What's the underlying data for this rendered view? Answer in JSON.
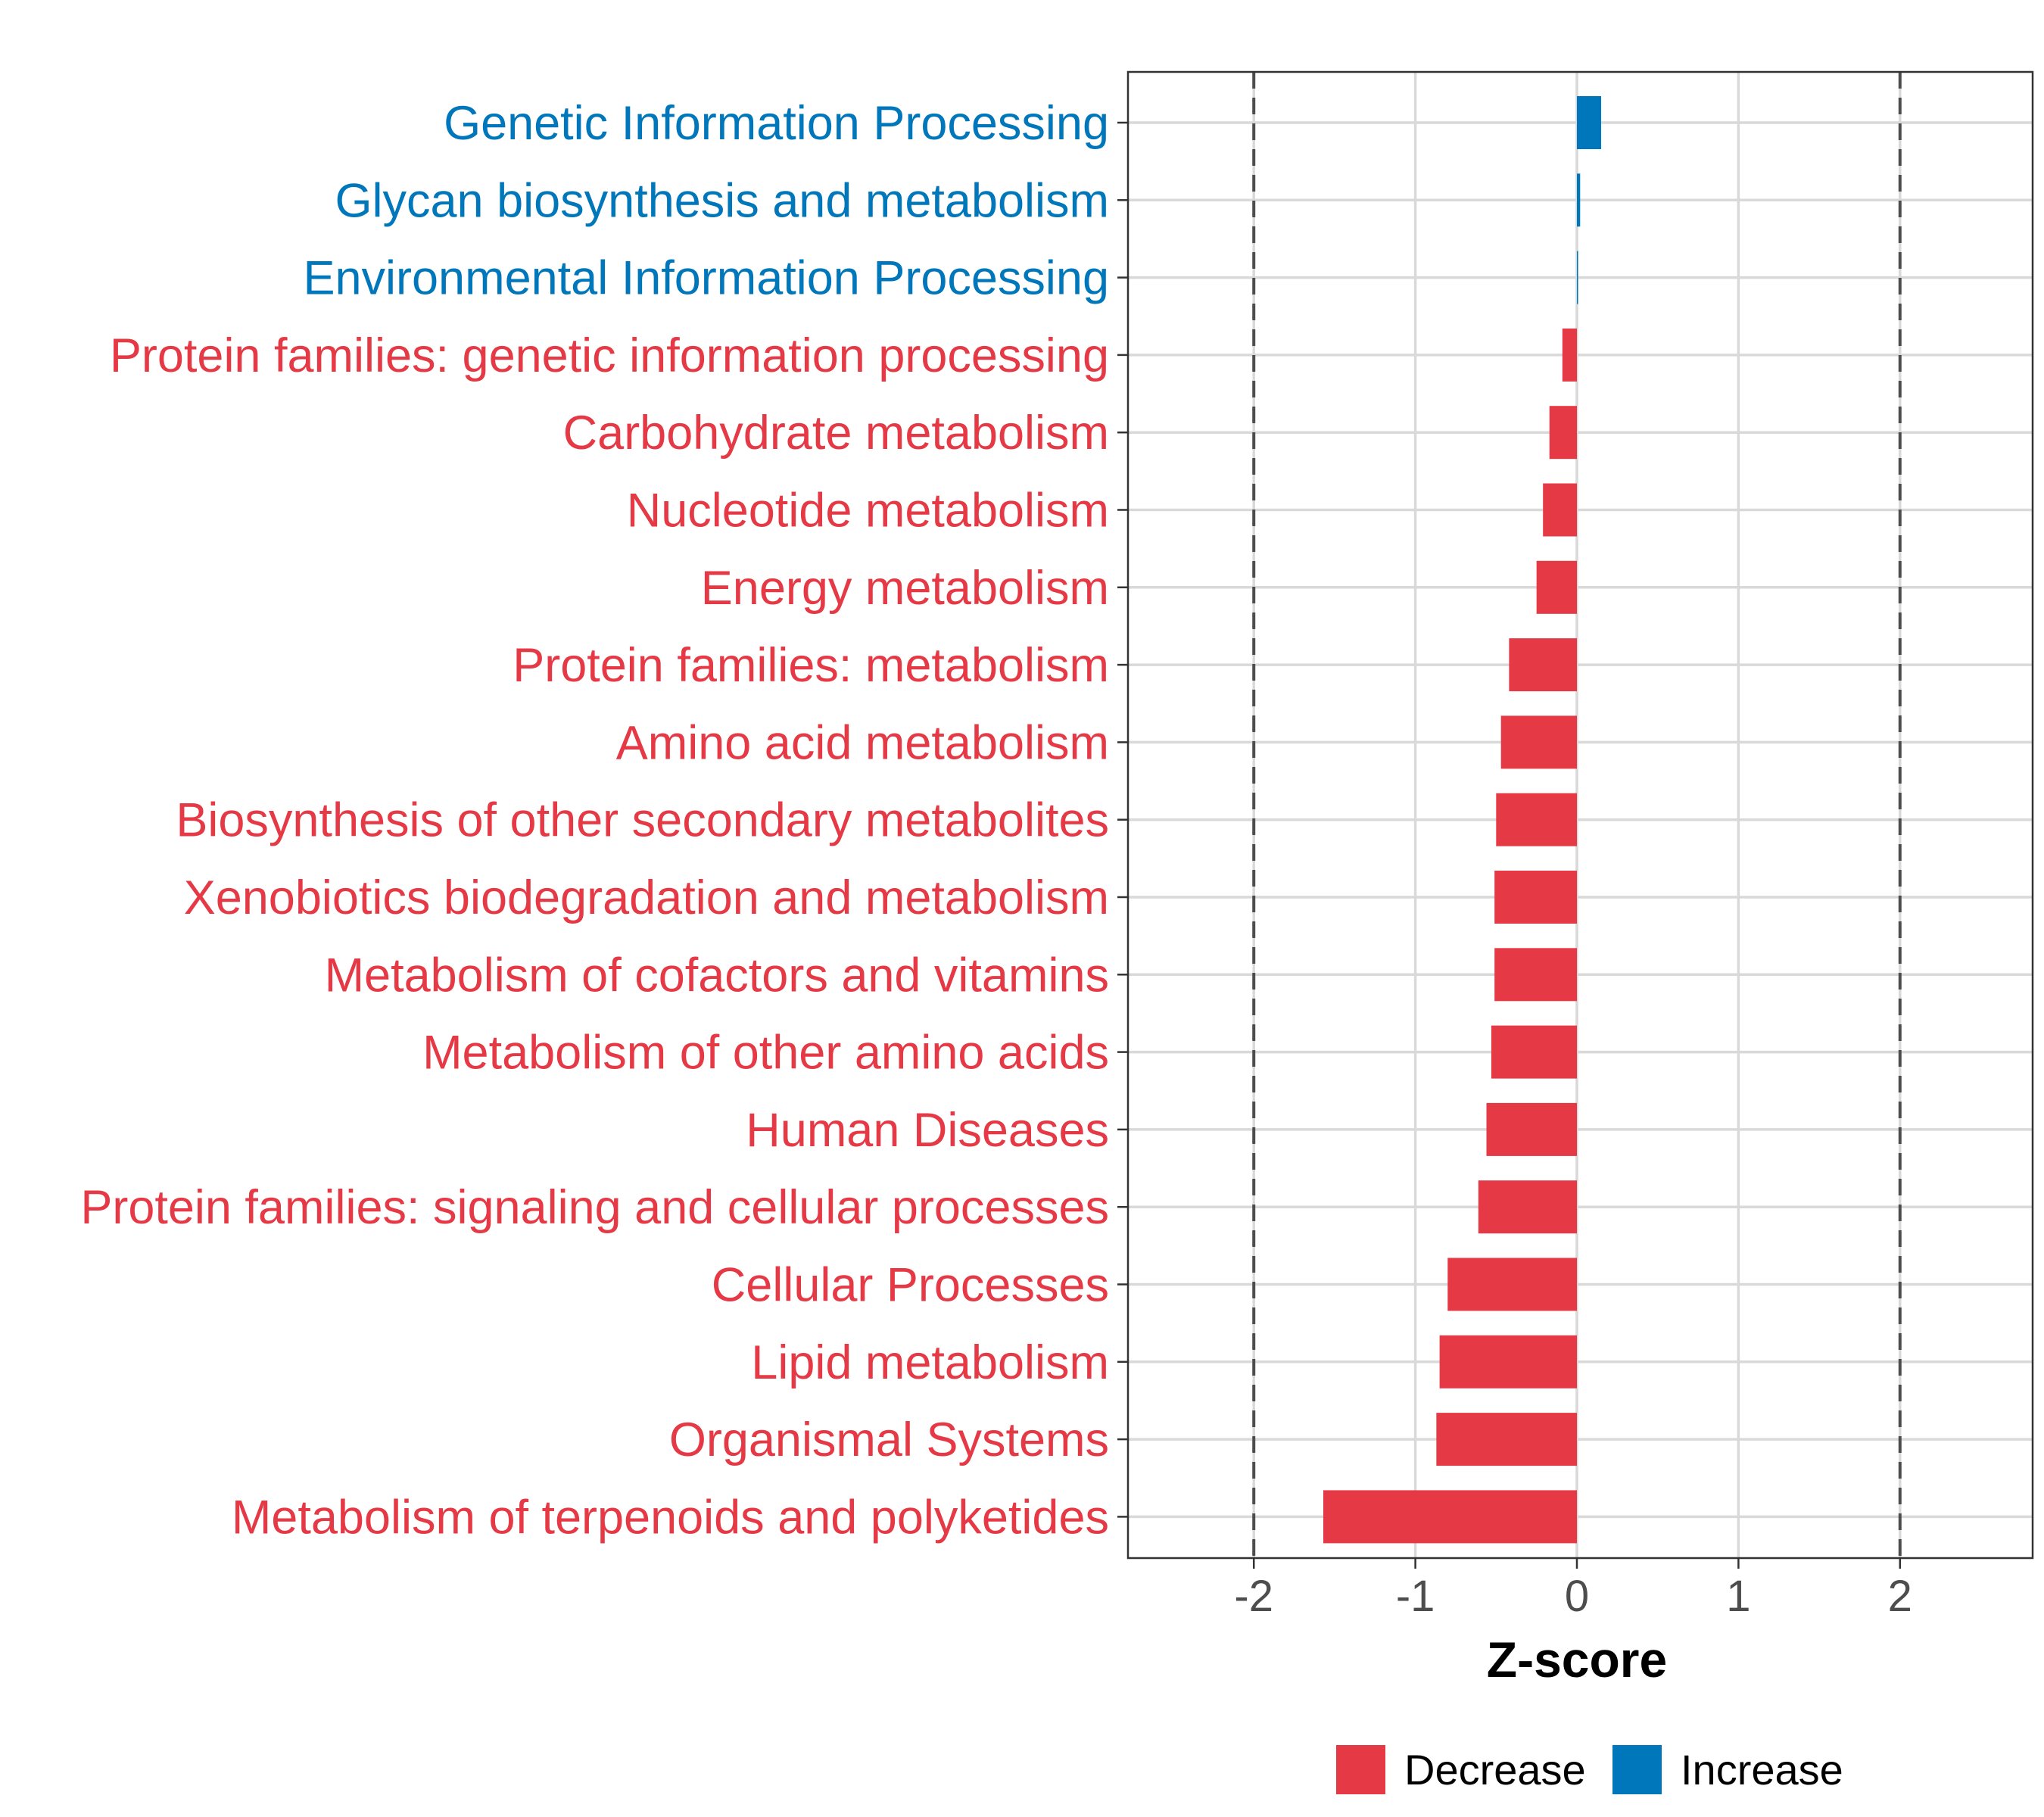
{
  "chart_data": {
    "type": "bar",
    "orientation": "horizontal",
    "xlabel": "Z-score",
    "xlim": [
      -2.8,
      2.8
    ],
    "xticks": [
      -2,
      -1,
      0,
      1,
      2
    ],
    "xtick_labels": [
      "-2",
      "-1",
      "0",
      "1",
      "2"
    ],
    "reference_lines": [
      -2,
      2
    ],
    "grid": true,
    "colors": {
      "Decrease": "#e63946",
      "Increase": "#0077bb"
    },
    "categories": [
      "Genetic Information Processing",
      "Glycan biosynthesis and metabolism",
      "Environmental Information Processing",
      "Protein families: genetic information processing",
      "Carbohydrate metabolism",
      "Nucleotide metabolism",
      "Energy metabolism",
      "Protein families: metabolism",
      "Amino acid metabolism",
      "Biosynthesis of other secondary metabolites",
      "Xenobiotics biodegradation and metabolism",
      "Metabolism of cofactors and vitamins",
      "Metabolism of other amino acids",
      "Human Diseases",
      "Protein families: signaling and cellular processes",
      "Cellular Processes",
      "Lipid metabolism",
      "Organismal Systems",
      "Metabolism of terpenoids and polyketides"
    ],
    "values": [
      0.15,
      0.02,
      0.005,
      -0.09,
      -0.17,
      -0.21,
      -0.25,
      -0.42,
      -0.47,
      -0.5,
      -0.51,
      -0.51,
      -0.53,
      -0.56,
      -0.61,
      -0.8,
      -0.85,
      -0.87,
      -1.57
    ],
    "groups": [
      "Increase",
      "Increase",
      "Increase",
      "Decrease",
      "Decrease",
      "Decrease",
      "Decrease",
      "Decrease",
      "Decrease",
      "Decrease",
      "Decrease",
      "Decrease",
      "Decrease",
      "Decrease",
      "Decrease",
      "Decrease",
      "Decrease",
      "Decrease",
      "Decrease"
    ],
    "legend": {
      "position": "bottom",
      "entries": [
        {
          "label": "Decrease",
          "color": "#e63946"
        },
        {
          "label": "Increase",
          "color": "#0077bb"
        }
      ]
    }
  }
}
